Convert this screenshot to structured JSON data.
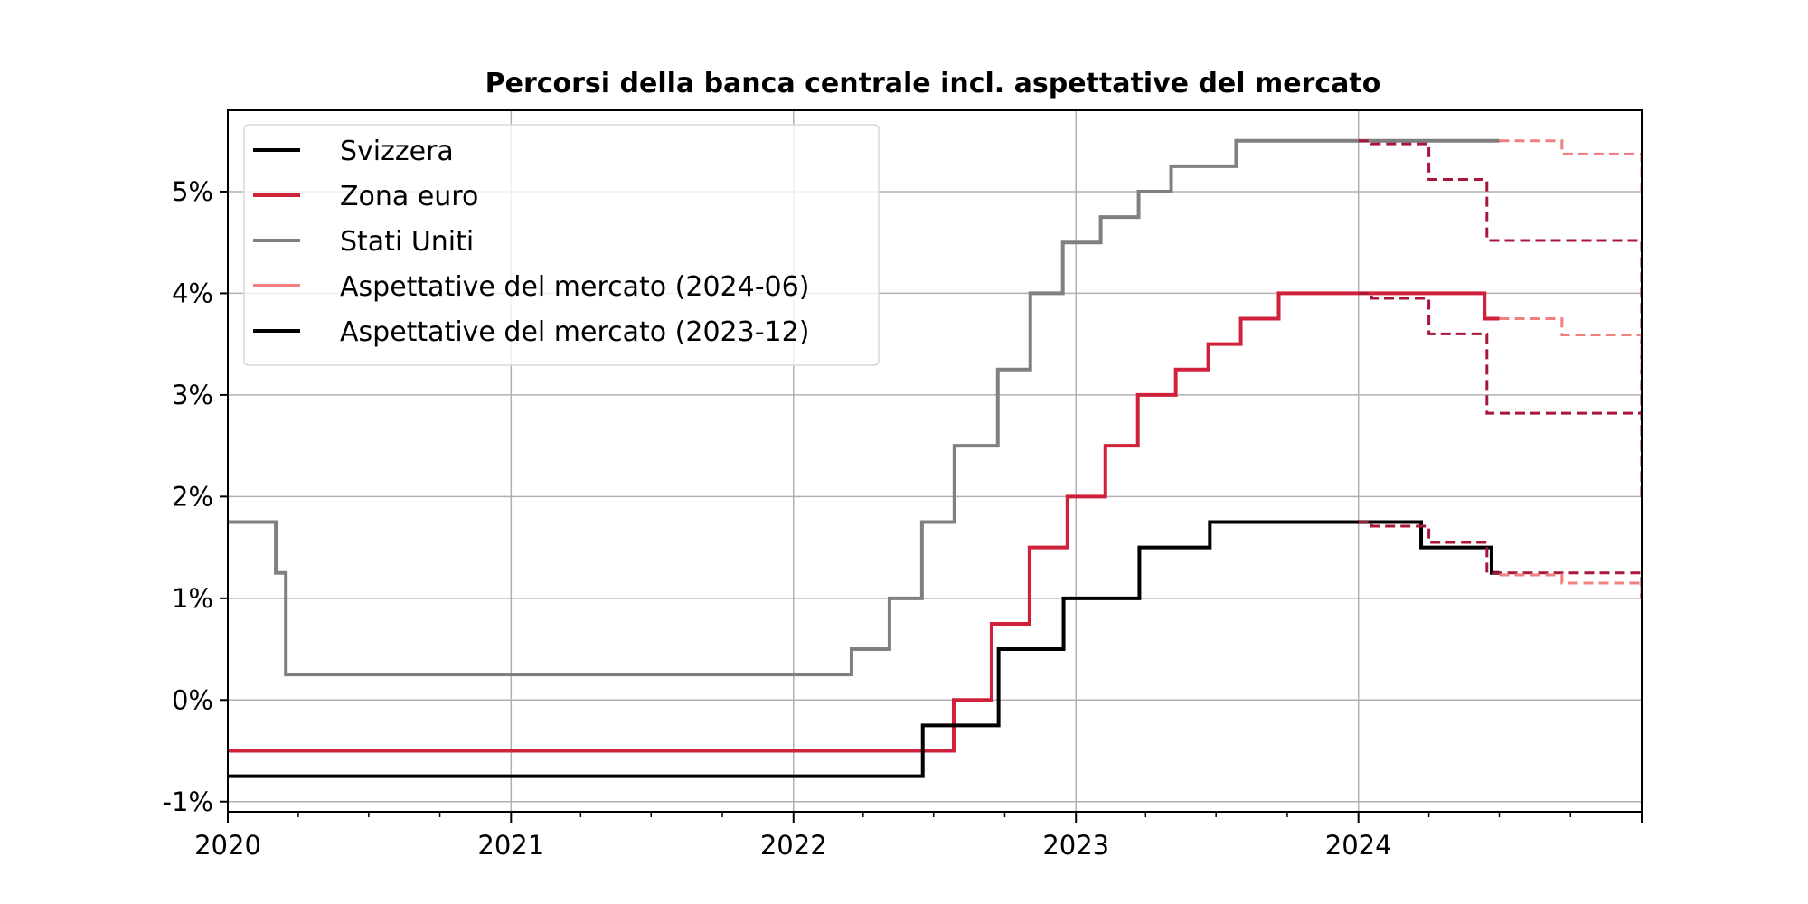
{
  "chart_data": {
    "type": "line",
    "step": true,
    "title": "Percorsi della banca centrale incl. aspettative del mercato",
    "xlabel": "",
    "ylabel": "",
    "xlim": [
      "2020-01-01",
      "2025-01-01"
    ],
    "ylim": [
      -1.1,
      5.8
    ],
    "x_ticks": [
      {
        "value": "2020-01-01",
        "label": "2020"
      },
      {
        "value": "2021-01-01",
        "label": "2021"
      },
      {
        "value": "2022-01-01",
        "label": "2022"
      },
      {
        "value": "2023-01-01",
        "label": "2023"
      },
      {
        "value": "2024-01-01",
        "label": "2024"
      }
    ],
    "y_ticks": [
      {
        "value": -1,
        "label": "-1%"
      },
      {
        "value": 0,
        "label": "0%"
      },
      {
        "value": 1,
        "label": "1%"
      },
      {
        "value": 2,
        "label": "2%"
      },
      {
        "value": 3,
        "label": "3%"
      },
      {
        "value": 4,
        "label": "4%"
      },
      {
        "value": 5,
        "label": "5%"
      }
    ],
    "grid": true,
    "legend_position": "top-left",
    "legend": [
      {
        "label": "Svizzera",
        "color": "#000000",
        "dash": "solid"
      },
      {
        "label": "Zona euro",
        "color": "#d0213a",
        "dash": "solid"
      },
      {
        "label": "Stati Uniti",
        "color": "#808080",
        "dash": "solid"
      },
      {
        "label": "Aspettative del mercato (2024-06)",
        "color": "#f08080",
        "dash": "solid"
      },
      {
        "label": "Aspettative del mercato (2023-12)",
        "color": "#000000",
        "dash": "solid"
      }
    ],
    "series": [
      {
        "id": "us",
        "color": "#808080",
        "dash": "solid",
        "points": [
          [
            "2020-01-01",
            1.75
          ],
          [
            "2020-03-03",
            1.25
          ],
          [
            "2020-03-16",
            0.25
          ],
          [
            "2022-03-17",
            0.5
          ],
          [
            "2022-05-05",
            1.0
          ],
          [
            "2022-06-16",
            1.75
          ],
          [
            "2022-07-28",
            2.5
          ],
          [
            "2022-09-22",
            3.25
          ],
          [
            "2022-11-03",
            4.0
          ],
          [
            "2022-12-15",
            4.5
          ],
          [
            "2023-02-02",
            4.75
          ],
          [
            "2023-03-23",
            5.0
          ],
          [
            "2023-05-04",
            5.25
          ],
          [
            "2023-07-27",
            5.5
          ],
          [
            "2024-07-01",
            5.5
          ]
        ]
      },
      {
        "id": "ez",
        "color": "#d0213a",
        "dash": "solid",
        "points": [
          [
            "2020-01-01",
            -0.5
          ],
          [
            "2022-07-27",
            0.0
          ],
          [
            "2022-09-14",
            0.75
          ],
          [
            "2022-11-02",
            1.5
          ],
          [
            "2022-12-21",
            2.0
          ],
          [
            "2023-02-08",
            2.5
          ],
          [
            "2023-03-22",
            3.0
          ],
          [
            "2023-05-10",
            3.25
          ],
          [
            "2023-06-21",
            3.5
          ],
          [
            "2023-08-02",
            3.75
          ],
          [
            "2023-09-20",
            4.0
          ],
          [
            "2024-06-12",
            3.75
          ],
          [
            "2024-07-01",
            3.75
          ]
        ]
      },
      {
        "id": "ch",
        "color": "#000000",
        "dash": "solid",
        "points": [
          [
            "2020-01-01",
            -0.75
          ],
          [
            "2022-06-17",
            -0.25
          ],
          [
            "2022-09-23",
            0.5
          ],
          [
            "2022-12-16",
            1.0
          ],
          [
            "2023-03-24",
            1.5
          ],
          [
            "2023-06-23",
            1.75
          ],
          [
            "2024-03-22",
            1.5
          ],
          [
            "2024-06-21",
            1.25
          ],
          [
            "2024-07-01",
            1.25
          ]
        ]
      },
      {
        "id": "exp-2023-12-us",
        "color": "#a8173a",
        "dash": "dashed",
        "points": [
          [
            "2024-01-01",
            5.5
          ],
          [
            "2024-01-18",
            5.47
          ],
          [
            "2024-04-01",
            5.12
          ],
          [
            "2024-06-15",
            4.52
          ],
          [
            "2025-01-01",
            2.0
          ]
        ]
      },
      {
        "id": "exp-2023-12-ez",
        "color": "#a8173a",
        "dash": "dashed",
        "points": [
          [
            "2024-01-01",
            4.0
          ],
          [
            "2024-01-18",
            3.95
          ],
          [
            "2024-04-01",
            3.6
          ],
          [
            "2024-06-15",
            2.82
          ],
          [
            "2025-01-01",
            2.0
          ]
        ]
      },
      {
        "id": "exp-2023-12-ch",
        "color": "#a8173a",
        "dash": "dashed",
        "points": [
          [
            "2024-01-01",
            1.75
          ],
          [
            "2024-01-18",
            1.71
          ],
          [
            "2024-04-01",
            1.55
          ],
          [
            "2024-06-15",
            1.25
          ],
          [
            "2025-01-01",
            1.0
          ]
        ]
      },
      {
        "id": "exp-2024-06-us",
        "color": "#f08080",
        "dash": "dashed",
        "points": [
          [
            "2024-07-01",
            5.5
          ],
          [
            "2024-09-20",
            5.37
          ],
          [
            "2025-01-01",
            5.0
          ]
        ]
      },
      {
        "id": "exp-2024-06-ez",
        "color": "#f08080",
        "dash": "dashed",
        "points": [
          [
            "2024-07-01",
            3.75
          ],
          [
            "2024-09-20",
            3.59
          ],
          [
            "2025-01-01",
            3.25
          ]
        ]
      },
      {
        "id": "exp-2024-06-ch",
        "color": "#f08080",
        "dash": "dashed",
        "points": [
          [
            "2024-07-01",
            1.23
          ],
          [
            "2024-09-20",
            1.15
          ],
          [
            "2025-01-01",
            1.05
          ]
        ]
      }
    ]
  }
}
